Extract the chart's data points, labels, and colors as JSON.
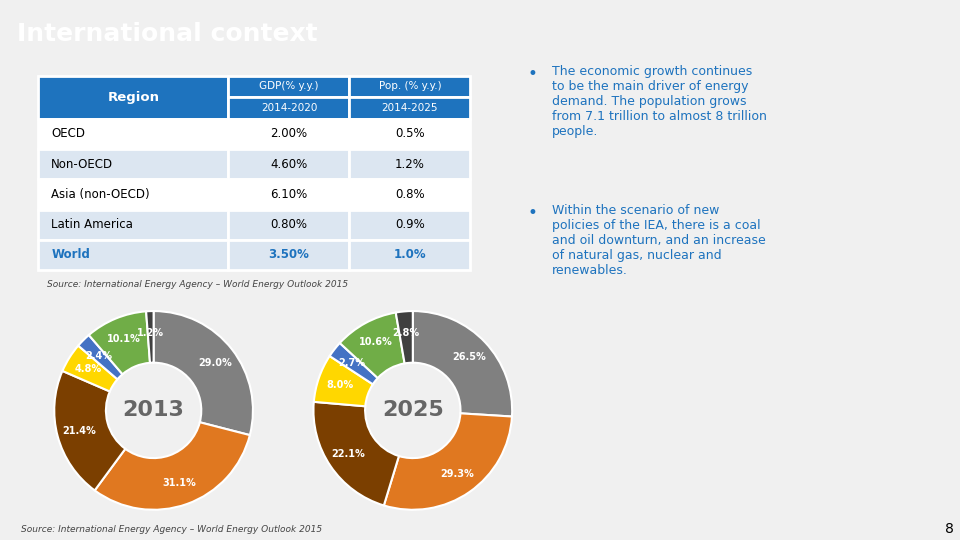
{
  "title": "International context",
  "title_bg_color": "#1e73be",
  "title_text_color": "#ffffff",
  "slide_bg_color": "#f0f0f0",
  "table_header_bg": "#1e73be",
  "table_header_text": "#ffffff",
  "table_row_alt_bg": "#dce6f1",
  "table_row_bg": "#ffffff",
  "table_border_color": "#ffffff",
  "table_regions": [
    "OECD",
    "Non-OECD",
    "Asia (non-OECD)",
    "Latin America",
    "World"
  ],
  "table_gdp": [
    "2.00%",
    "4.60%",
    "6.10%",
    "0.80%",
    "3.50%"
  ],
  "table_pop": [
    "0.5%",
    "1.2%",
    "0.8%",
    "0.9%",
    "1.0%"
  ],
  "source_text": "Source: International Energy Agency – World Energy Outlook 2015",
  "pie2013_values": [
    29.0,
    31.1,
    21.4,
    4.8,
    2.4,
    10.1,
    1.2
  ],
  "pie2013_labels": [
    "29.0%",
    "31.1%",
    "21.4%",
    "4.8%",
    "2.4%",
    "10.1%",
    "1.2%"
  ],
  "pie2013_colors": [
    "#808080",
    "#e07820",
    "#7B3F00",
    "#FFD700",
    "#4472C4",
    "#70AD47",
    "#404040"
  ],
  "pie2013_center": "2013",
  "pie2025_values": [
    26.5,
    29.3,
    22.1,
    8.0,
    2.7,
    10.6,
    2.8
  ],
  "pie2025_labels": [
    "26.5%",
    "29.3%",
    "22.1%",
    "8.0%",
    "2.7%",
    "10.6%",
    "2.8%"
  ],
  "pie2025_colors": [
    "#808080",
    "#e07820",
    "#7B3F00",
    "#FFD700",
    "#4472C4",
    "#70AD47",
    "#404040"
  ],
  "pie2025_center": "2025",
  "bullet1": "The economic growth continues\nto be the main driver of energy\ndemand. The population grows\nfrom 7.1 trillion to almost 8 trillion\npeople.",
  "bullet2": "Within the scenario of new\npolicies of the IEA, there is a coal\nand oil downturn, and an increase\nof natural gas, nuclear and\nrenewables.",
  "bullet_color": "#1e73be",
  "page_number": "8"
}
